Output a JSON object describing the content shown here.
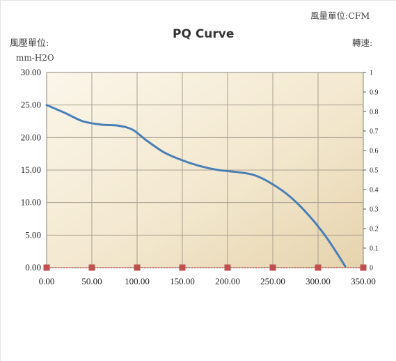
{
  "header": {
    "flow_unit_label": "風量單位:CFM",
    "pressure_unit_label": "風壓單位:",
    "pressure_unit_value": "mm-H2O",
    "speed_label": "轉速:"
  },
  "chart_data": {
    "type": "line",
    "title": "PQ Curve",
    "xlabel": "",
    "ylabel": "",
    "xlim": [
      0,
      350
    ],
    "ylim": [
      0,
      30
    ],
    "y2lim": [
      0,
      1
    ],
    "grid": true,
    "x_ticks": [
      "0.00",
      "50.00",
      "100.00",
      "150.00",
      "200.00",
      "250.00",
      "300.00",
      "350.00"
    ],
    "y_ticks": [
      "0.00",
      "5.00",
      "10.00",
      "15.00",
      "20.00",
      "25.00",
      "30.00"
    ],
    "y2_ticks": [
      "0",
      "0.1",
      "0.2",
      "0.3",
      "0.4",
      "0.5",
      "0.6",
      "0.7",
      "0.8",
      "0.9",
      "1"
    ],
    "series": [
      {
        "color": "#4a7fb6",
        "points": [
          [
            0,
            25.0
          ],
          [
            20,
            23.8
          ],
          [
            40,
            22.5
          ],
          [
            60,
            22.0
          ],
          [
            80,
            21.8
          ],
          [
            95,
            21.2
          ],
          [
            110,
            19.6
          ],
          [
            130,
            17.7
          ],
          [
            150,
            16.5
          ],
          [
            170,
            15.6
          ],
          [
            190,
            15.0
          ],
          [
            210,
            14.7
          ],
          [
            230,
            14.2
          ],
          [
            250,
            12.8
          ],
          [
            270,
            10.8
          ],
          [
            290,
            8.0
          ],
          [
            310,
            4.5
          ],
          [
            330,
            0.2
          ]
        ]
      },
      {
        "color": "#c0504d",
        "marker": "square",
        "points": [
          [
            0,
            0
          ],
          [
            50,
            0
          ],
          [
            100,
            0
          ],
          [
            150,
            0
          ],
          [
            200,
            0
          ],
          [
            250,
            0
          ],
          [
            300,
            0
          ],
          [
            350,
            0
          ]
        ]
      }
    ]
  }
}
